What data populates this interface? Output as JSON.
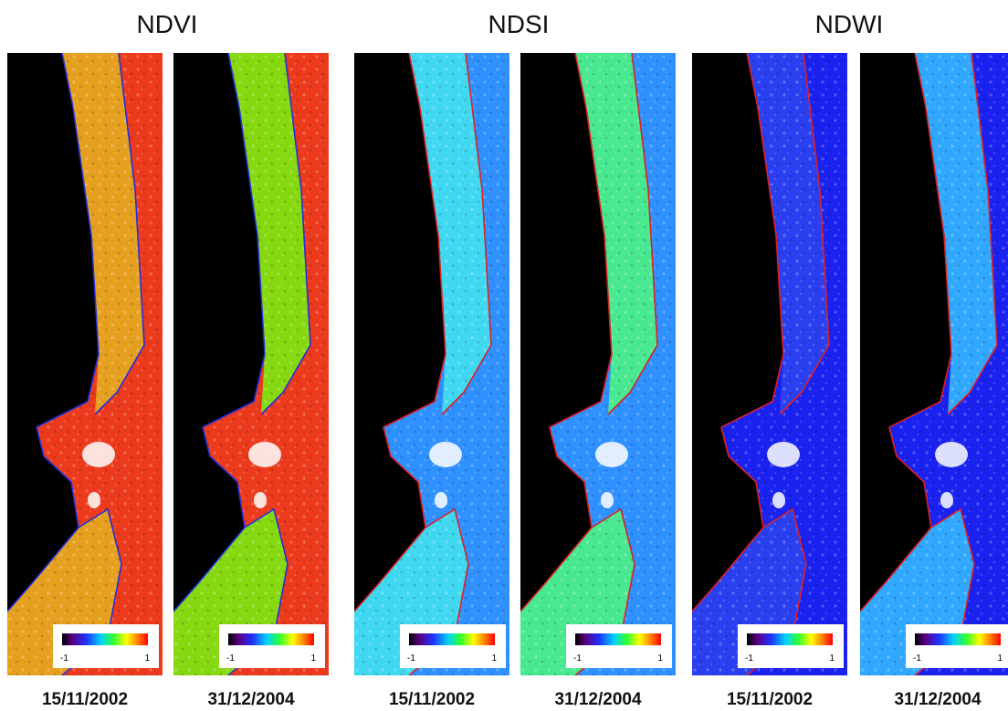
{
  "groups": [
    {
      "title": "NDVI",
      "panels": [
        {
          "date": "15/11/2002",
          "scale_min": -1,
          "scale_max": 1
        },
        {
          "date": "31/12/2004",
          "scale_min": -1,
          "scale_max": 1
        }
      ]
    },
    {
      "title": "NDSI",
      "panels": [
        {
          "date": "15/11/2002",
          "scale_min": -1,
          "scale_max": 1
        },
        {
          "date": "31/12/2004",
          "scale_min": -1,
          "scale_max": 1
        }
      ]
    },
    {
      "title": "NDWI",
      "panels": [
        {
          "date": "15/11/2002",
          "scale_min": -1,
          "scale_max": 1
        },
        {
          "date": "31/12/2004",
          "scale_min": -1,
          "scale_max": 1
        }
      ]
    }
  ]
}
